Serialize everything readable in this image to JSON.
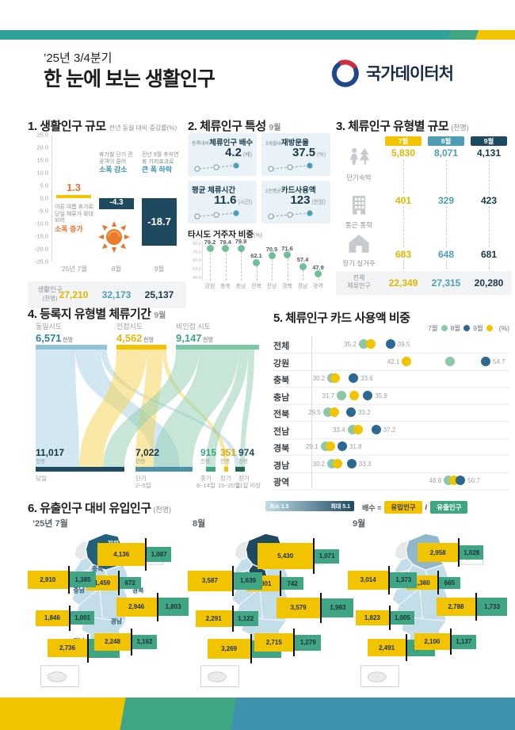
{
  "topbar": {
    "teal": "#2ea39b",
    "green": "#3fa583",
    "yellow": "#f2c400",
    "blue": "#3e92ad"
  },
  "header": {
    "quarter": "’25년 3/4분기",
    "title": "한 눈에 보는 생활인구",
    "org": "국가데이터처"
  },
  "section1": {
    "title": "1. 생활인구 규모",
    "subtitle": "전년 동월 대비 증감률(%)",
    "yticks": [
      "25.0",
      "20.0",
      "15.0",
      "10.0",
      "5.0",
      "0.0",
      "-5.0",
      "-10.0",
      "-15.0",
      "-20.0",
      "-25.0"
    ],
    "categories": [
      "’25년 7월",
      "8월",
      "9월"
    ],
    "values": [
      1.3,
      -4.3,
      -18.7
    ],
    "value_labels": [
      "1.3",
      "-4.3",
      "-18.7"
    ],
    "ann_jul_text": "이른 여름 휴가로 당일 체류가 확대되어",
    "ann_jul_emph": "소폭 증가",
    "ann_aug_text": "휴가철 단기 관광객이 줄어",
    "ann_aug_emph": "소폭 감소",
    "ann_sep_text": "전년 9월 추석연휴 기저효과로",
    "ann_sep_emph": "큰 폭 하락",
    "table_label": "생활인구",
    "table_unit": "(천명)",
    "table_values": [
      "27,210",
      "32,173",
      "25,137"
    ],
    "table_colors": [
      "#e0b700",
      "#4d9db5",
      "#17384a"
    ]
  },
  "section2": {
    "title": "2. 체류인구 특성",
    "period": "9월",
    "cards": [
      {
        "prefix": "등록대비",
        "name": "체류인구 배수",
        "value": "4.2",
        "unit": "(배)"
      },
      {
        "prefix": "3개월내",
        "name": "재방문율",
        "value": "37.5",
        "unit": "(%)"
      },
      {
        "prefix": "",
        "name": "평균 체류시간",
        "value": "11.6",
        "unit": "(시간)"
      },
      {
        "prefix": "1인평균",
        "name": "카드사용액",
        "value": "123",
        "unit": "(천원)"
      }
    ],
    "lollipop_title": "타시도 거주자 비중",
    "lollipop_unit": "(%)",
    "lollipop_categories": [
      "강원",
      "충북",
      "충남",
      "전북",
      "전남",
      "경북",
      "경남",
      "광역"
    ],
    "lollipop_values": [
      79.2,
      79.4,
      79.9,
      62.1,
      70.5,
      71.6,
      57.4,
      47.9
    ],
    "lollipop_yticks": [
      "80.0",
      "70.0",
      "60.0",
      "50.0",
      "40.0"
    ]
  },
  "section3": {
    "title": "3. 체류인구 유형별 규모",
    "unit": "(천명)",
    "months": [
      "7월",
      "8월",
      "9월"
    ],
    "month_colors": [
      "#f2c400",
      "#4d9db5",
      "#1e4a60"
    ],
    "value_colors": [
      "#e0b700",
      "#4d9db5",
      "#17384a"
    ],
    "rows": [
      {
        "label": "단기숙박",
        "icon": "traveler-icon",
        "values": [
          "5,830",
          "8,071",
          "4,131"
        ]
      },
      {
        "label": "통근·통학",
        "icon": "building-icon",
        "values": [
          "401",
          "329",
          "423"
        ]
      },
      {
        "label": "장기 실거주",
        "icon": "house-icon",
        "values": [
          "683",
          "648",
          "681"
        ]
      }
    ],
    "total_label": "전체 체류인구",
    "total_values": [
      "22,349",
      "27,315",
      "20,280"
    ]
  },
  "section4": {
    "title": "4. 등록지 유형별 체류기간",
    "period": "9월",
    "unit": "천명",
    "sources": [
      {
        "label": "동일시도",
        "value": "6,571",
        "color": "#2e7fa8"
      },
      {
        "label": "인접시도",
        "value": "4,562",
        "color": "#eab510"
      },
      {
        "label": "비인접 시도",
        "value": "9,147",
        "color": "#3fa583"
      }
    ],
    "targets": [
      {
        "label": "당일",
        "sub": "",
        "value": "11,017",
        "color": "#17323f"
      },
      {
        "label": "단기",
        "sub": "2~5일",
        "value": "7,022",
        "color": "#17323f"
      },
      {
        "label": "중기",
        "sub": "6~14일",
        "value": "915",
        "color": "#3fa583"
      },
      {
        "label": "장기",
        "sub": "15~20일",
        "value": "351",
        "color": "#e0a800"
      },
      {
        "label": "장기",
        "sub": "21일 이상",
        "value": "974",
        "color": "#1e4a60"
      }
    ]
  },
  "section5": {
    "title": "5. 체류인구 카드 사용액 비중",
    "unit": "(%)",
    "legend": [
      {
        "label": "7월",
        "color": "#8cc8a8"
      },
      {
        "label": "8월",
        "color": "#2d6893"
      },
      {
        "label": "9월",
        "color": "#f2c400"
      }
    ],
    "rows": [
      {
        "label": "전체",
        "min": "35.2",
        "max": "39.5",
        "jul": 35.2,
        "aug": 39.5,
        "sep": 36.4
      },
      {
        "label": "강원",
        "min": "42.1",
        "max": "54.7",
        "jul": 49.0,
        "aug": 54.7,
        "sep": 42.1
      },
      {
        "label": "충북",
        "min": "30.2",
        "max": "33.6",
        "jul": 30.2,
        "aug": 33.6,
        "sep": 30.7
      },
      {
        "label": "충남",
        "min": "31.7",
        "max": "35.9",
        "jul": 31.7,
        "aug": 35.9,
        "sep": 33.7
      },
      {
        "label": "전북",
        "min": "29.5",
        "max": "33.2",
        "jul": 29.5,
        "aug": 33.2,
        "sep": 30.6
      },
      {
        "label": "전남",
        "min": "33.4",
        "max": "37.2",
        "jul": 33.4,
        "aug": 37.2,
        "sep": 34.4
      },
      {
        "label": "경북",
        "min": "29.1",
        "max": "31.8",
        "jul": 29.1,
        "aug": 31.8,
        "sep": 29.9
      },
      {
        "label": "경남",
        "min": "30.2",
        "max": "33.3",
        "jul": 30.2,
        "aug": 33.3,
        "sep": 31.1
      },
      {
        "label": "광역",
        "min": "48.8",
        "max": "50.7",
        "jul": 48.8,
        "aug": 50.7,
        "sep": 49.6
      }
    ]
  },
  "section6": {
    "title": "6. 유출인구 대비 유입인구",
    "unit": "(천명)",
    "scale_min": "최소 1.5",
    "scale_max": "최대 5.1",
    "formula_prefix": "배수 =",
    "formula_divider": "/",
    "inflow_label": "유입인구",
    "outflow_label": "유출인구",
    "region_order": [
      "강원",
      "충북",
      "충남",
      "전북",
      "전남",
      "경북",
      "경남"
    ],
    "maps": [
      {
        "month": "’25년 7월",
        "show_names": true,
        "bars": {
          "강원": [
            "4,136",
            "1,087"
          ],
          "충북": [
            "1,459",
            "672"
          ],
          "충남": [
            "2,910",
            "1,385"
          ],
          "전북": [
            "1,846",
            "1,001"
          ],
          "전남": [
            "2,736",
            "1,882"
          ],
          "경북": [
            "2,946",
            "1,803"
          ],
          "경남": [
            "2,248",
            "1,162"
          ]
        },
        "fills": {
          "land": "#c3dee9",
          "gangwon": "#23607a",
          "chungbuk": "#c3dee9",
          "chungnam": "#c3dee9",
          "capital": "#e6e8ea"
        }
      },
      {
        "month": "8월",
        "show_names": false,
        "bars": {
          "강원": [
            "5,430",
            "1,071"
          ],
          "충북": [
            "1,801",
            "742"
          ],
          "충남": [
            "3,587",
            "1,639"
          ],
          "전북": [
            "2,291",
            "1,122"
          ],
          "전남": [
            "3,269",
            "1,724"
          ],
          "경북": [
            "3,579",
            "1,983"
          ],
          "경남": [
            "2,715",
            "1,279"
          ]
        },
        "fills": {
          "land": "#c3dee9",
          "gangwon": "#1e4a60",
          "chungbuk": "#1e4a60",
          "chungnam": "#9dc3d4",
          "capital": "#e6e8ea"
        }
      },
      {
        "month": "9월",
        "show_names": false,
        "bars": {
          "강원": [
            "2,958",
            "1,028"
          ],
          "충북": [
            "1,360",
            "665"
          ],
          "충남": [
            "3,014",
            "1,373"
          ],
          "전북": [
            "1,823",
            "1,005"
          ],
          "전남": [
            "2,491",
            "1,532"
          ],
          "경북": [
            "2,788",
            "1,733"
          ],
          "경남": [
            "2,100",
            "1,137"
          ]
        },
        "fills": {
          "land": "#c3dee9",
          "gangwon": "#8fb8cc",
          "chungbuk": "#c3dee9",
          "chungnam": "#c3dee9",
          "capital": "#e6e8ea"
        }
      }
    ]
  },
  "chart_data": [
    {
      "type": "bar",
      "title": "생활인구 규모 — 전년 동월 대비 증감률(%)",
      "categories": [
        "’25년 7월",
        "8월",
        "9월"
      ],
      "values": [
        1.3,
        -4.3,
        -18.7
      ],
      "ylim": [
        -25,
        25
      ],
      "annotations": [
        "이른 여름 휴가로 당일 체류가 확대되어 소폭 증가",
        "휴가철 단기 관광객이 줄어 소폭 감소",
        "전년 9월 추석연휴 기저효과로 큰 폭 하락"
      ],
      "table": {
        "label": "생활인구(천명)",
        "values": [
          27210,
          32173,
          25137
        ]
      }
    },
    {
      "type": "scatter",
      "title": "타시도 거주자 비중(%) 9월",
      "categories": [
        "강원",
        "충북",
        "충남",
        "전북",
        "전남",
        "경북",
        "경남",
        "광역"
      ],
      "values": [
        79.2,
        79.4,
        79.9,
        62.1,
        70.5,
        71.6,
        57.4,
        47.9
      ],
      "ylim": [
        40,
        85
      ]
    },
    {
      "type": "table",
      "title": "체류인구 유형별 규모(천명)",
      "columns": [
        "7월",
        "8월",
        "9월"
      ],
      "rows": [
        [
          "단기숙박",
          5830,
          8071,
          4131
        ],
        [
          "통근·통학",
          401,
          329,
          423
        ],
        [
          "장기 실거주",
          683,
          648,
          681
        ],
        [
          "전체 체류인구",
          22349,
          27315,
          20280
        ]
      ]
    },
    {
      "type": "table",
      "title": "등록지 유형별 체류기간 9월(천명) — 상단 출발지 / 하단 체류기간",
      "columns": [
        "구분",
        "천명"
      ],
      "rows": [
        [
          "동일시도",
          6571
        ],
        [
          "인접시도",
          4562
        ],
        [
          "비인접 시도",
          9147
        ],
        [
          "당일",
          11017
        ],
        [
          "단기 2~5일",
          7022
        ],
        [
          "중기 6~14일",
          915
        ],
        [
          "장기 15~20일",
          351
        ],
        [
          "장기 21일 이상",
          974
        ]
      ]
    },
    {
      "type": "scatter",
      "title": "체류인구 카드 사용액 비중(%)",
      "categories": [
        "전체",
        "강원",
        "충북",
        "충남",
        "전북",
        "전남",
        "경북",
        "경남",
        "광역"
      ],
      "series": [
        {
          "name": "7월",
          "values": [
            35.2,
            49.0,
            30.2,
            31.7,
            29.5,
            33.4,
            29.1,
            30.2,
            48.8
          ]
        },
        {
          "name": "8월",
          "values": [
            39.5,
            54.7,
            33.6,
            35.9,
            33.2,
            37.2,
            31.8,
            33.3,
            50.7
          ]
        },
        {
          "name": "9월",
          "values": [
            36.4,
            42.1,
            30.7,
            33.7,
            30.6,
            34.4,
            29.9,
            31.1,
            49.6
          ]
        }
      ]
    },
    {
      "type": "bar",
      "title": "유출인구 대비 유입인구(천명)",
      "categories": [
        "강원",
        "충북",
        "충남",
        "전북",
        "전남",
        "경북",
        "경남"
      ],
      "series": [
        {
          "name": "7월 유입인구",
          "values": [
            4136,
            1459,
            2910,
            1846,
            2736,
            2946,
            2248
          ]
        },
        {
          "name": "7월 유출인구",
          "values": [
            1087,
            672,
            1385,
            1001,
            1882,
            1803,
            1162
          ]
        },
        {
          "name": "8월 유입인구",
          "values": [
            5430,
            1801,
            3587,
            2291,
            3269,
            3579,
            2715
          ]
        },
        {
          "name": "8월 유출인구",
          "values": [
            1071,
            742,
            1639,
            1122,
            1724,
            1983,
            1279
          ]
        },
        {
          "name": "9월 유입인구",
          "values": [
            2958,
            1360,
            3014,
            1823,
            2491,
            2788,
            2100
          ]
        },
        {
          "name": "9월 유출인구",
          "values": [
            1028,
            665,
            1373,
            1005,
            1532,
            1733,
            1137
          ]
        }
      ]
    }
  ]
}
